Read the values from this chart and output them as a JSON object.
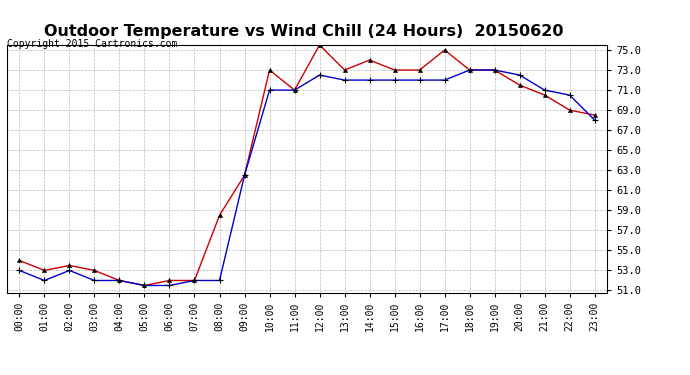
{
  "title": "Outdoor Temperature vs Wind Chill (24 Hours)  20150620",
  "copyright": "Copyright 2015 Cartronics.com",
  "x_labels": [
    "00:00",
    "01:00",
    "02:00",
    "03:00",
    "04:00",
    "05:00",
    "06:00",
    "07:00",
    "08:00",
    "09:00",
    "10:00",
    "11:00",
    "12:00",
    "13:00",
    "14:00",
    "15:00",
    "16:00",
    "17:00",
    "18:00",
    "19:00",
    "20:00",
    "21:00",
    "22:00",
    "23:00"
  ],
  "temperature": [
    54.0,
    53.0,
    53.5,
    53.0,
    52.0,
    51.5,
    52.0,
    52.0,
    58.5,
    62.5,
    73.0,
    71.0,
    75.5,
    73.0,
    74.0,
    73.0,
    73.0,
    75.0,
    73.0,
    73.0,
    71.5,
    70.5,
    69.0,
    68.5
  ],
  "wind_chill": [
    53.0,
    52.0,
    53.0,
    52.0,
    52.0,
    51.5,
    51.5,
    52.0,
    52.0,
    62.5,
    71.0,
    71.0,
    72.5,
    72.0,
    72.0,
    72.0,
    72.0,
    72.0,
    73.0,
    73.0,
    72.5,
    71.0,
    70.5,
    68.0
  ],
  "temp_color": "#cc0000",
  "wind_color": "#0000cc",
  "ylim_min": 51.0,
  "ylim_max": 75.0,
  "yticks": [
    51.0,
    53.0,
    55.0,
    57.0,
    59.0,
    61.0,
    63.0,
    65.0,
    67.0,
    69.0,
    71.0,
    73.0,
    75.0
  ],
  "background_color": "#ffffff",
  "grid_color": "#bbbbbb",
  "legend_wind_bg": "#0000cc",
  "legend_temp_bg": "#cc0000",
  "legend_text_color": "#ffffff",
  "title_fontsize": 11.5,
  "copyright_fontsize": 7,
  "tick_fontsize": 7,
  "ytick_fontsize": 7.5
}
